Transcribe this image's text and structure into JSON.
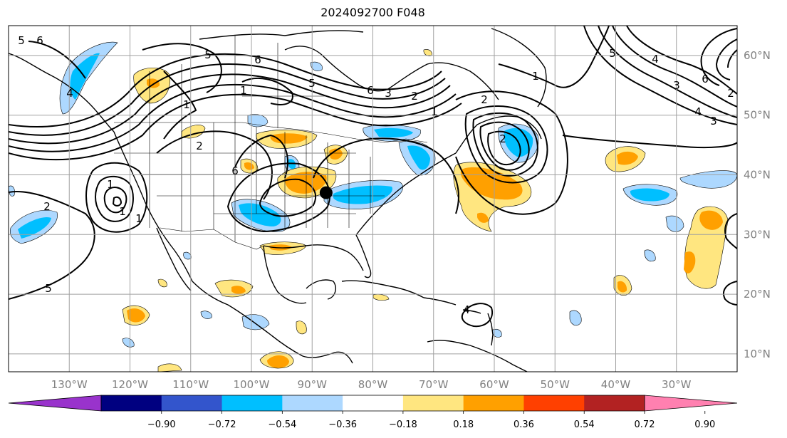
{
  "title": "2024092700 F048",
  "map": {
    "lon_range": [
      -140,
      -20
    ],
    "lat_range": [
      7,
      65
    ],
    "gridlines": true,
    "lat_labels": [
      "60°N",
      "50°N",
      "40°N",
      "30°N",
      "20°N",
      "10°N"
    ],
    "lat_values": [
      60,
      50,
      40,
      30,
      20,
      10
    ],
    "lon_labels": [
      "130°W",
      "120°W",
      "110°W",
      "100°W",
      "90°W",
      "80°W",
      "70°W",
      "60°W",
      "50°W",
      "40°W",
      "30°W"
    ],
    "lon_values": [
      -130,
      -120,
      -110,
      -100,
      -90,
      -80,
      -70,
      -60,
      -50,
      -40,
      -30
    ],
    "marker": {
      "lon": -87.7,
      "lat": 37.0,
      "color": "#000000"
    },
    "contour_labels": [
      "5",
      "6",
      "5",
      "6",
      "1",
      "1",
      "4",
      "3",
      "2",
      "1",
      "2",
      "6",
      "5",
      "6",
      "5",
      "4",
      "1",
      "6",
      "3",
      "2",
      "3",
      "4",
      "2",
      "2",
      "1",
      "1",
      "1",
      "2",
      "5",
      "4"
    ]
  },
  "colorbar": {
    "colors": [
      "#9933cc",
      "#000080",
      "#3355cc",
      "#00bfff",
      "#add8ff",
      "#ffffff",
      "#ffe680",
      "#ffa000",
      "#ff4000",
      "#b22222",
      "#ff80b0"
    ],
    "tick_labels": [
      "−0.90",
      "−0.72",
      "−0.54",
      "−0.36",
      "−0.18",
      "0.18",
      "0.36",
      "0.54",
      "0.72",
      "0.90"
    ],
    "tick_values": [
      -0.9,
      -0.72,
      -0.54,
      -0.36,
      -0.18,
      0.18,
      0.36,
      0.54,
      0.72,
      0.9
    ],
    "extend": "both"
  }
}
